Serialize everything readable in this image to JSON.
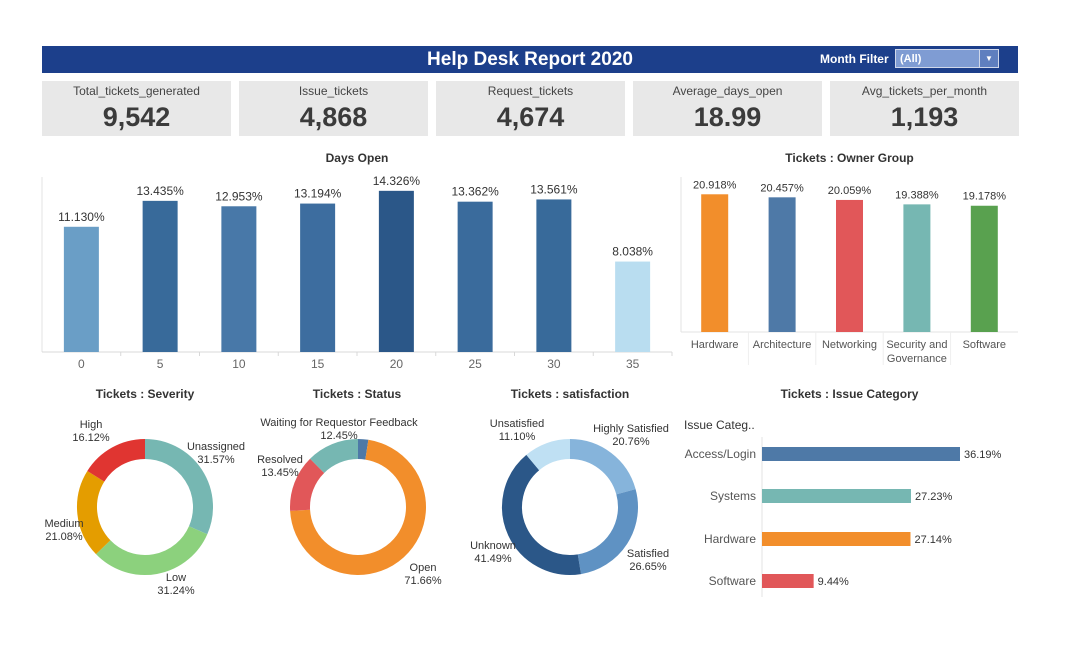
{
  "header": {
    "title": "Help Desk Report 2020",
    "filter_label": "Month Filter",
    "filter_value": "(All)",
    "color": "#1c3f8b"
  },
  "kpis": [
    {
      "label": "Total_tickets_generated",
      "value": "9,542"
    },
    {
      "label": "Issue_tickets",
      "value": "4,868"
    },
    {
      "label": "Request_tickets",
      "value": "4,674"
    },
    {
      "label": "Average_days_open",
      "value": "18.99"
    },
    {
      "label": "Avg_tickets_per_month",
      "value": "1,193"
    }
  ],
  "chart_data": [
    {
      "id": "days_open",
      "type": "bar",
      "title": "Days Open",
      "categories": [
        "0",
        "5",
        "10",
        "15",
        "20",
        "25",
        "30",
        "35"
      ],
      "values": [
        11.13,
        13.435,
        12.953,
        13.194,
        14.326,
        13.362,
        13.561,
        8.038
      ],
      "labels": [
        "11.130%",
        "13.435%",
        "12.953%",
        "13.194%",
        "14.326%",
        "13.362%",
        "13.561%",
        "8.038%"
      ],
      "colors": [
        "#6a9ec6",
        "#386a9a",
        "#4878a8",
        "#3d6d9f",
        "#2b5788",
        "#3a6b9c",
        "#386a9a",
        "#b9ddf0"
      ],
      "ylim": [
        0,
        16
      ],
      "grid": false
    },
    {
      "id": "owner_group",
      "type": "bar",
      "title": "Tickets : Owner Group",
      "categories": [
        "Hardware",
        "Architecture",
        "Networking",
        "Security and Governance",
        "Software"
      ],
      "category_lines": [
        [
          "Hardware"
        ],
        [
          "Architecture"
        ],
        [
          "Networking"
        ],
        [
          "Security and",
          "Governance"
        ],
        [
          "Software"
        ]
      ],
      "values": [
        20.918,
        20.457,
        20.059,
        19.388,
        19.178
      ],
      "labels": [
        "20.918%",
        "20.457%",
        "20.059%",
        "19.388%",
        "19.178%"
      ],
      "colors": [
        "#f28e2b",
        "#4e79a7",
        "#e15759",
        "#76b7b2",
        "#59a14f"
      ],
      "ylim": [
        0,
        24
      ],
      "grid": false
    },
    {
      "id": "severity",
      "type": "pie",
      "title": "Tickets : Severity",
      "slices": [
        {
          "name": "Unassigned",
          "value": 31.57,
          "label": "31.57%",
          "color": "#76b7b2"
        },
        {
          "name": "Low",
          "value": 31.24,
          "label": "31.24%",
          "color": "#8cd17d"
        },
        {
          "name": "Medium",
          "value": 21.08,
          "label": "21.08%",
          "color": "#e49d00"
        },
        {
          "name": "High",
          "value": 16.12,
          "label": "16.12%",
          "color": "#e03531"
        }
      ]
    },
    {
      "id": "status",
      "type": "pie",
      "title": "Tickets : Status",
      "slices": [
        {
          "name": "",
          "value": 2.44,
          "label": "",
          "color": "#4e79a7"
        },
        {
          "name": "Open",
          "value": 71.66,
          "label": "71.66%",
          "color": "#f28e2b"
        },
        {
          "name": "Resolved",
          "value": 13.45,
          "label": "13.45%",
          "color": "#e15759"
        },
        {
          "name": "Waiting for Requestor Feedback",
          "value": 12.45,
          "label": "12.45%",
          "color": "#76b7b2"
        }
      ]
    },
    {
      "id": "satisfaction",
      "type": "pie",
      "title": "Tickets : satisfaction",
      "slices": [
        {
          "name": "Highly Satisfied",
          "value": 20.76,
          "label": "20.76%",
          "color": "#86b4db"
        },
        {
          "name": "Satisfied",
          "value": 26.65,
          "label": "26.65%",
          "color": "#5f92c3"
        },
        {
          "name": "Unknown",
          "value": 41.49,
          "label": "41.49%",
          "color": "#2b5788"
        },
        {
          "name": "Unsatisfied",
          "value": 11.1,
          "label": "11.10%",
          "color": "#bfe0f3"
        }
      ]
    },
    {
      "id": "issue_category",
      "type": "bar",
      "orientation": "horizontal",
      "title": "Tickets : Issue Category",
      "header_label": "Issue Categ..",
      "categories": [
        "Access/Login",
        "Systems",
        "Hardware",
        "Software"
      ],
      "values": [
        36.19,
        27.23,
        27.14,
        9.44
      ],
      "labels": [
        "36.19%",
        "27.23%",
        "27.14%",
        "9.44%"
      ],
      "colors": [
        "#4e79a7",
        "#76b7b2",
        "#f28e2b",
        "#e15759"
      ],
      "xlim": [
        0,
        36.19
      ]
    }
  ]
}
